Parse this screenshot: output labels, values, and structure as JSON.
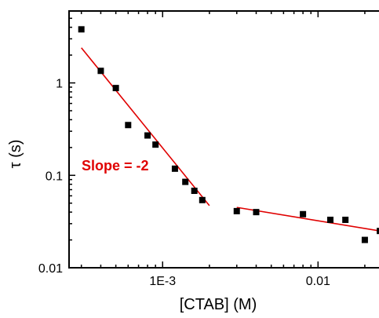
{
  "chart_data": {
    "type": "scatter",
    "xlabel": "[CTAB] (M)",
    "ylabel": "τ (s)",
    "x_scale": "log",
    "y_scale": "log",
    "xlim": [
      0.00025,
      0.033
    ],
    "ylim": [
      0.01,
      6
    ],
    "grid": false,
    "x_ticks": [
      {
        "value": 0.001,
        "label": "1E-3"
      },
      {
        "value": 0.01,
        "label": "0.01"
      }
    ],
    "y_ticks": [
      {
        "value": 0.01,
        "label": "0.01"
      },
      {
        "value": 0.1,
        "label": "0.1"
      },
      {
        "value": 1,
        "label": "1"
      }
    ],
    "series": [
      {
        "marker": "square",
        "color": "#000000",
        "points": [
          {
            "x": 0.0003,
            "y": 3.8
          },
          {
            "x": 0.0004,
            "y": 1.35
          },
          {
            "x": 0.0005,
            "y": 0.88
          },
          {
            "x": 0.0006,
            "y": 0.35
          },
          {
            "x": 0.0008,
            "y": 0.27
          },
          {
            "x": 0.0009,
            "y": 0.215
          },
          {
            "x": 0.0012,
            "y": 0.118
          },
          {
            "x": 0.0014,
            "y": 0.085
          },
          {
            "x": 0.0016,
            "y": 0.068
          },
          {
            "x": 0.0018,
            "y": 0.054
          },
          {
            "x": 0.003,
            "y": 0.041
          },
          {
            "x": 0.004,
            "y": 0.04
          },
          {
            "x": 0.008,
            "y": 0.038
          },
          {
            "x": 0.012,
            "y": 0.033
          },
          {
            "x": 0.015,
            "y": 0.033
          },
          {
            "x": 0.02,
            "y": 0.02
          },
          {
            "x": 0.025,
            "y": 0.025
          }
        ]
      }
    ],
    "fit_lines": [
      {
        "color": "#e00000",
        "x": [
          0.0003,
          0.002
        ],
        "y": [
          2.4,
          0.047
        ]
      },
      {
        "color": "#e00000",
        "x": [
          0.003,
          0.025
        ],
        "y": [
          0.045,
          0.025
        ]
      }
    ],
    "annotations": [
      {
        "text": "Slope = -2",
        "color": "#e00000"
      }
    ]
  }
}
